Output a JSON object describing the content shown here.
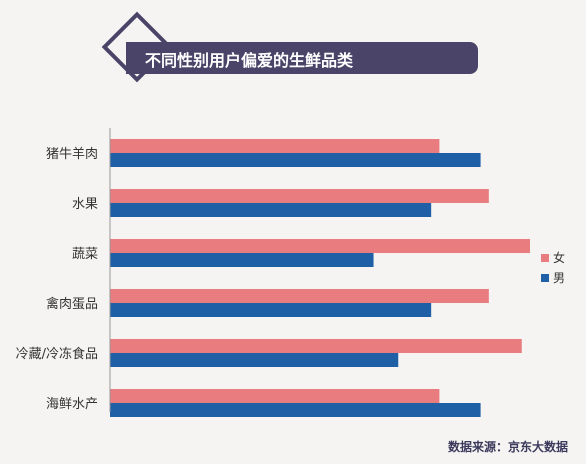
{
  "chart_data": {
    "type": "bar",
    "orientation": "horizontal",
    "title": "不同性别用户偏爱的生鲜品类",
    "source": "数据来源：京东大数据",
    "categories": [
      "猪牛羊肉",
      "水果",
      "蔬菜",
      "禽肉蛋品",
      "冷藏/冷冻食品",
      "海鲜水产"
    ],
    "series": [
      {
        "name": "女",
        "color": "#e87c7e",
        "values": [
          80,
          92,
          102,
          92,
          100,
          80
        ]
      },
      {
        "name": "男",
        "color": "#1f5fa6",
        "values": [
          90,
          78,
          64,
          78,
          70,
          90
        ]
      }
    ],
    "xlim": [
      0,
      102
    ],
    "grid": false,
    "legend_position": "right"
  }
}
